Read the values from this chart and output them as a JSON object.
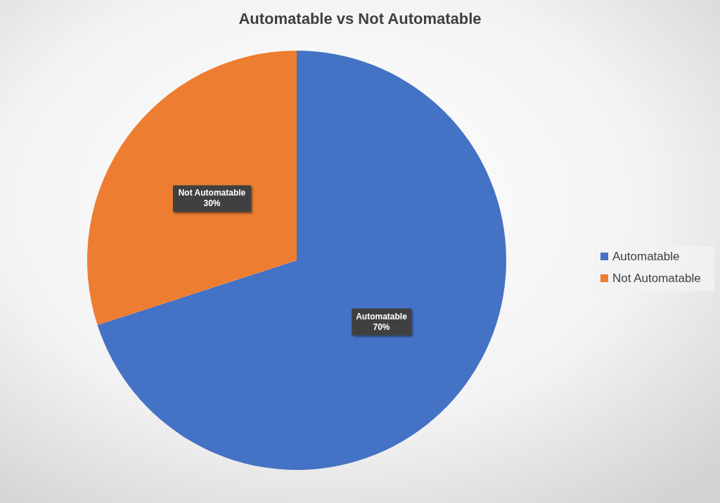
{
  "chart_data": {
    "type": "pie",
    "title": "Automatable vs Not Automatable",
    "categories": [
      "Automatable",
      "Not Automatable"
    ],
    "values": [
      70,
      30
    ],
    "colors": [
      "#4472c4",
      "#ed7d31"
    ],
    "value_labels": [
      "70%",
      "30%"
    ],
    "legend": "right"
  }
}
